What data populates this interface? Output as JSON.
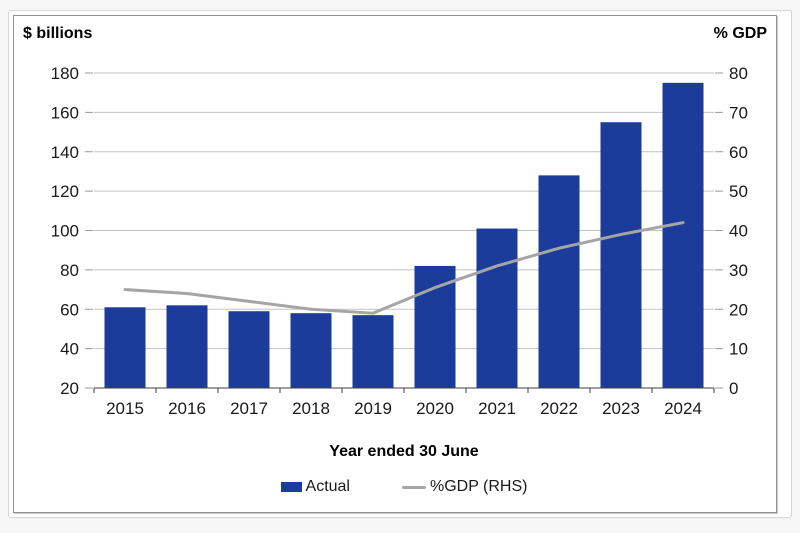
{
  "chart_data": {
    "type": "bar+line combo",
    "categories": [
      "2015",
      "2016",
      "2017",
      "2018",
      "2019",
      "2020",
      "2021",
      "2022",
      "2023",
      "2024"
    ],
    "series": [
      {
        "name": "Actual",
        "type": "bar",
        "axis": "left",
        "color": "#1b3c9b",
        "values": [
          61,
          62,
          59,
          58,
          57,
          82,
          101,
          128,
          155,
          175
        ]
      },
      {
        "name": "%GDP (RHS)",
        "type": "line",
        "axis": "right",
        "color": "#a5a5a5",
        "values": [
          25,
          24,
          22,
          20,
          19,
          25.5,
          31,
          35.5,
          39,
          42
        ]
      }
    ],
    "left_axis": {
      "title": "$ billions",
      "min": 20,
      "max": 180,
      "ticks": [
        180,
        160,
        140,
        120,
        100,
        80,
        60,
        40,
        20
      ]
    },
    "right_axis": {
      "title": "% GDP",
      "min": 0,
      "max": 80,
      "ticks": [
        80,
        70,
        60,
        50,
        40,
        30,
        20,
        10,
        0
      ]
    },
    "x_axis": {
      "title": "Year ended 30 June"
    },
    "grid": true,
    "legend_position": "bottom",
    "colors": {
      "gridline": "#c3c3c3",
      "axis_line": "#3f3f3f",
      "tick_mark": "#9a9a9a",
      "tick_text": "#1a1a1a",
      "frame_border": "#919191"
    }
  }
}
